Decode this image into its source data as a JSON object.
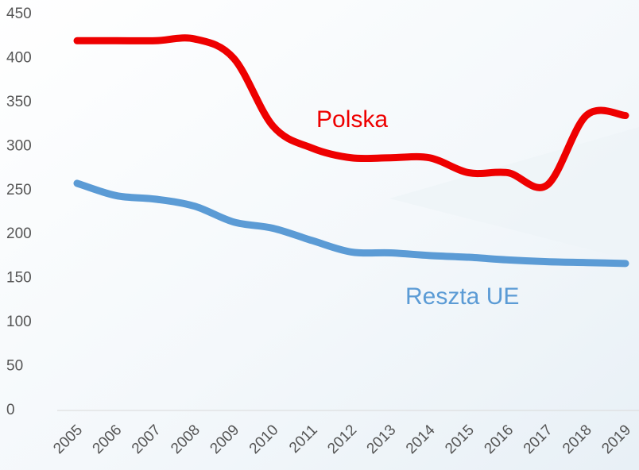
{
  "chart_data": {
    "type": "line",
    "categories": [
      "2005",
      "2006",
      "2007",
      "2008",
      "2009",
      "2010",
      "2011",
      "2012",
      "2013",
      "2014",
      "2015",
      "2016",
      "2017",
      "2018",
      "2019"
    ],
    "series": [
      {
        "name": "Polska",
        "color": "#ee0000",
        "values": [
          420,
          420,
          420,
          422,
          400,
          323,
          298,
          287,
          287,
          287,
          270,
          270,
          256,
          335,
          335
        ]
      },
      {
        "name": "Reszta UE",
        "color": "#5b9bd5",
        "values": [
          258,
          244,
          240,
          232,
          214,
          207,
          193,
          180,
          179,
          176,
          174,
          171,
          169,
          168,
          167
        ]
      }
    ],
    "ylim": [
      0,
      450
    ],
    "yticks": [
      0,
      50,
      100,
      150,
      200,
      250,
      300,
      350,
      400,
      450
    ],
    "grid": false
  }
}
